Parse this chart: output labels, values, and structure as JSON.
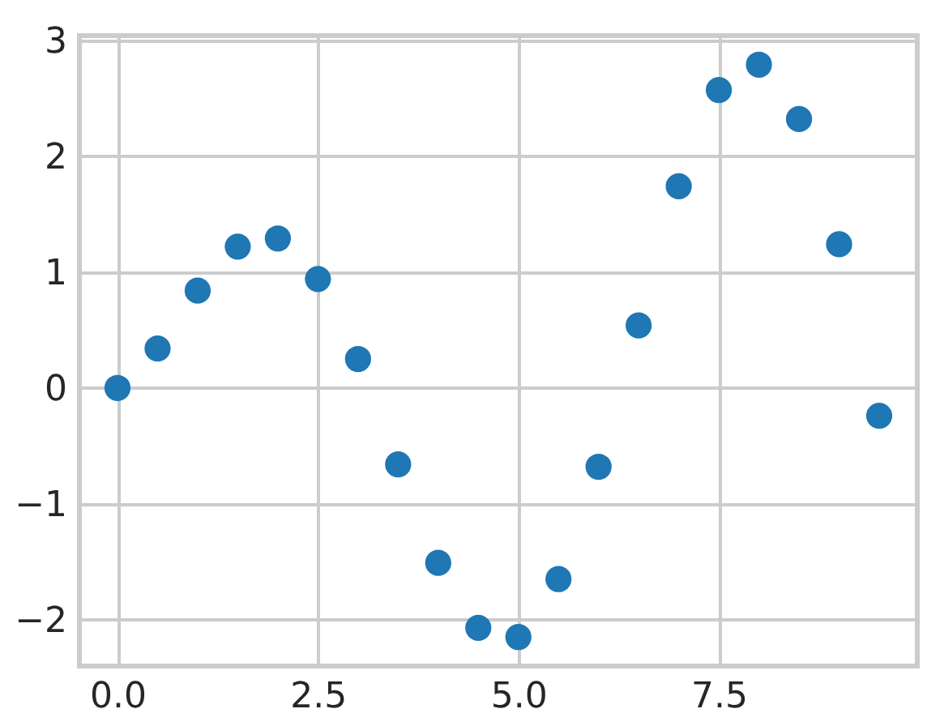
{
  "chart_data": {
    "type": "scatter",
    "x": [
      0,
      0.5,
      1,
      1.5,
      2,
      2.5,
      3,
      3.5,
      4,
      4.5,
      5,
      5.5,
      6,
      6.5,
      7,
      7.5,
      8,
      8.5,
      9,
      9.5
    ],
    "series": [
      {
        "color": "#1f77b4",
        "values": [
          0,
          0.34,
          0.84,
          1.22,
          1.29,
          0.94,
          0.25,
          -0.66,
          -1.51,
          -2.07,
          -2.15,
          -1.65,
          -0.68,
          0.54,
          1.74,
          2.57,
          2.79,
          2.32,
          1.24,
          -0.24
        ]
      }
    ],
    "xlim": [
      -0.475,
      9.975
    ],
    "ylim": [
      -2.4,
      3.04
    ],
    "xticks": [
      {
        "value": 0,
        "label": "0.0"
      },
      {
        "value": 2.5,
        "label": "2.5"
      },
      {
        "value": 5,
        "label": "5.0"
      },
      {
        "value": 7.5,
        "label": "7.5"
      }
    ],
    "yticks": [
      {
        "value": -2,
        "label": "−2"
      },
      {
        "value": -1,
        "label": "−1"
      },
      0,
      1,
      2,
      3
    ],
    "grid": true,
    "marker": "circle"
  }
}
